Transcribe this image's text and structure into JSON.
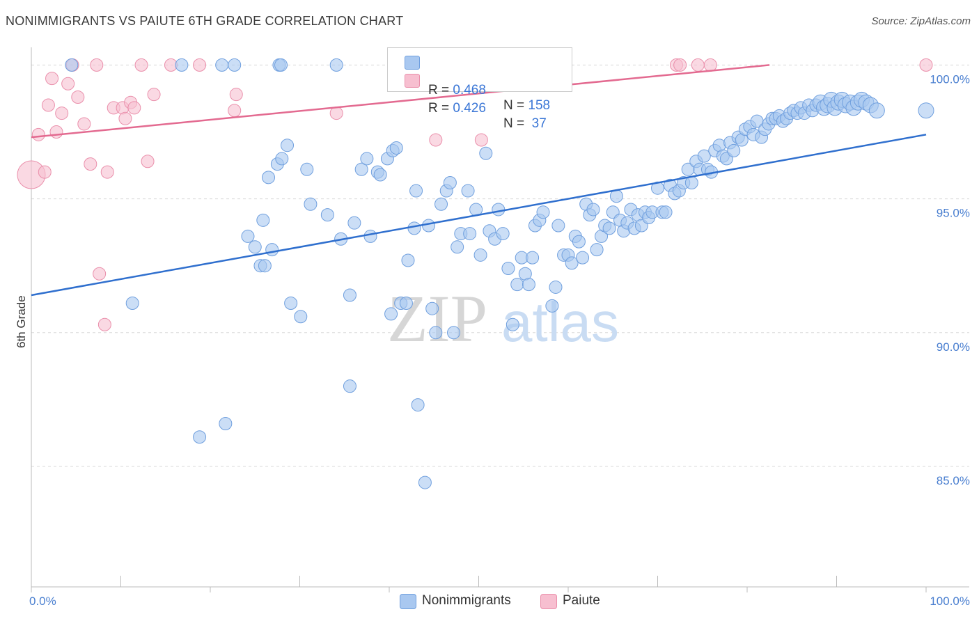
{
  "title": "NONIMMIGRANTS VS PAIUTE 6TH GRADE CORRELATION CHART",
  "source": "Source: ZipAtlas.com",
  "watermark": {
    "zip": "ZIP",
    "atlas": "atlas"
  },
  "legend": {
    "rows": [
      {
        "r_label": "R = ",
        "r_value": "0.468",
        "n_label": "N = ",
        "n_value": "158"
      },
      {
        "r_label": "R = ",
        "r_value": "0.426",
        "n_label": "N = ",
        "n_value": " 37"
      }
    ]
  },
  "bottom_legend": {
    "series_a": "Nonimmigrants",
    "series_b": "Paiute"
  },
  "colors": {
    "blue_fill": "#a9c8f0",
    "blue_stroke": "#6f9fde",
    "blue_line": "#2f6fce",
    "pink_fill": "#f7bfd0",
    "pink_stroke": "#ea8fab",
    "pink_line": "#e36a90",
    "tick_text": "#4a7fd0",
    "grid": "#d8d8d8"
  },
  "chart_data": {
    "type": "scatter",
    "title": "NONIMMIGRANTS VS PAIUTE 6TH GRADE CORRELATION CHART",
    "xlabel": "",
    "ylabel": "6th Grade",
    "xlim": [
      0,
      100
    ],
    "ylim": [
      80.5,
      100.4
    ],
    "x_tick_labels": [
      "0.0%",
      "100.0%"
    ],
    "y_ticks": [
      85,
      90,
      95,
      100
    ],
    "y_tick_labels": [
      "85.0%",
      "90.0%",
      "95.0%",
      "100.0%"
    ],
    "grid": "horizontal dashed",
    "series": [
      {
        "name": "Nonimmigrants",
        "R": 0.468,
        "N": 158,
        "trend": {
          "x": [
            0,
            100
          ],
          "y": [
            91.4,
            97.4
          ]
        },
        "points": [
          [
            4.5,
            100
          ],
          [
            16.8,
            100
          ],
          [
            21.3,
            100
          ],
          [
            22.7,
            100
          ],
          [
            27.7,
            100
          ],
          [
            27.9,
            100
          ],
          [
            34.1,
            100
          ],
          [
            11.3,
            91.1
          ],
          [
            18.8,
            86.1
          ],
          [
            21.7,
            86.6
          ],
          [
            24.2,
            93.6
          ],
          [
            25.0,
            93.2
          ],
          [
            25.6,
            92.5
          ],
          [
            25.9,
            94.2
          ],
          [
            26.1,
            92.5
          ],
          [
            26.5,
            95.8
          ],
          [
            26.9,
            93.1
          ],
          [
            27.5,
            96.3
          ],
          [
            28.6,
            97.0
          ],
          [
            28.0,
            96.5
          ],
          [
            29.0,
            91.1
          ],
          [
            30.1,
            90.6
          ],
          [
            30.8,
            96.1
          ],
          [
            31.2,
            94.8
          ],
          [
            33.1,
            94.4
          ],
          [
            34.6,
            93.5
          ],
          [
            35.6,
            91.4
          ],
          [
            35.6,
            88.0
          ],
          [
            36.1,
            94.1
          ],
          [
            36.9,
            96.1
          ],
          [
            37.5,
            96.5
          ],
          [
            37.9,
            93.6
          ],
          [
            38.7,
            96.0
          ],
          [
            39.0,
            95.9
          ],
          [
            39.8,
            96.5
          ],
          [
            40.2,
            90.7
          ],
          [
            40.4,
            96.8
          ],
          [
            40.8,
            96.9
          ],
          [
            41.3,
            91.1
          ],
          [
            41.9,
            91.1
          ],
          [
            42.1,
            92.7
          ],
          [
            42.8,
            93.9
          ],
          [
            43.0,
            95.3
          ],
          [
            43.2,
            87.3
          ],
          [
            44.0,
            84.4
          ],
          [
            44.4,
            94.0
          ],
          [
            44.8,
            90.9
          ],
          [
            45.2,
            90.0
          ],
          [
            45.8,
            94.8
          ],
          [
            46.4,
            95.3
          ],
          [
            46.8,
            95.6
          ],
          [
            47.2,
            90.0
          ],
          [
            47.6,
            93.2
          ],
          [
            48.0,
            93.7
          ],
          [
            48.8,
            95.3
          ],
          [
            49.0,
            93.7
          ],
          [
            49.7,
            94.6
          ],
          [
            50.2,
            92.9
          ],
          [
            50.8,
            96.7
          ],
          [
            51.2,
            93.8
          ],
          [
            51.8,
            93.5
          ],
          [
            52.2,
            94.6
          ],
          [
            52.7,
            93.7
          ],
          [
            53.3,
            92.4
          ],
          [
            53.8,
            90.3
          ],
          [
            54.3,
            91.8
          ],
          [
            54.8,
            92.8
          ],
          [
            55.2,
            92.2
          ],
          [
            55.6,
            91.8
          ],
          [
            56.0,
            92.8
          ],
          [
            56.3,
            94.0
          ],
          [
            56.8,
            94.2
          ],
          [
            57.2,
            94.5
          ],
          [
            58.2,
            91.0
          ],
          [
            58.6,
            91.7
          ],
          [
            58.9,
            94.0
          ],
          [
            59.5,
            92.9
          ],
          [
            60.0,
            92.9
          ],
          [
            60.4,
            92.6
          ],
          [
            60.8,
            93.6
          ],
          [
            61.2,
            93.4
          ],
          [
            61.6,
            92.8
          ],
          [
            62.0,
            94.8
          ],
          [
            62.4,
            94.4
          ],
          [
            62.8,
            94.6
          ],
          [
            63.2,
            93.1
          ],
          [
            63.7,
            93.6
          ],
          [
            64.1,
            94.0
          ],
          [
            64.6,
            93.9
          ],
          [
            65.0,
            94.5
          ],
          [
            65.4,
            95.1
          ],
          [
            65.8,
            94.2
          ],
          [
            66.2,
            93.8
          ],
          [
            66.6,
            94.1
          ],
          [
            67.0,
            94.6
          ],
          [
            67.4,
            93.9
          ],
          [
            67.8,
            94.4
          ],
          [
            68.2,
            94.0
          ],
          [
            68.6,
            94.5
          ],
          [
            69.0,
            94.3
          ],
          [
            69.4,
            94.5
          ],
          [
            70.0,
            95.4
          ],
          [
            70.5,
            94.5
          ],
          [
            70.9,
            94.5
          ],
          [
            71.4,
            95.5
          ],
          [
            71.9,
            95.2
          ],
          [
            72.4,
            95.3
          ],
          [
            72.9,
            95.6
          ],
          [
            73.4,
            96.1
          ],
          [
            73.8,
            95.6
          ],
          [
            74.3,
            96.4
          ],
          [
            74.7,
            96.1
          ],
          [
            75.2,
            96.6
          ],
          [
            75.6,
            96.1
          ],
          [
            76.0,
            96.0
          ],
          [
            76.4,
            96.8
          ],
          [
            76.9,
            97.0
          ],
          [
            77.3,
            96.6
          ],
          [
            77.7,
            96.5
          ],
          [
            78.1,
            97.1
          ],
          [
            78.5,
            96.8
          ],
          [
            79.0,
            97.3
          ],
          [
            79.4,
            97.2
          ],
          [
            79.8,
            97.6
          ],
          [
            80.3,
            97.7
          ],
          [
            80.7,
            97.4
          ],
          [
            81.1,
            97.9
          ],
          [
            81.6,
            97.3
          ],
          [
            82.0,
            97.6
          ],
          [
            82.4,
            97.8
          ],
          [
            82.8,
            98.0
          ],
          [
            83.2,
            98.0
          ],
          [
            83.6,
            98.1
          ],
          [
            84.0,
            97.9
          ],
          [
            84.4,
            98.0
          ],
          [
            84.8,
            98.2
          ],
          [
            85.2,
            98.3
          ],
          [
            85.6,
            98.2
          ],
          [
            86.0,
            98.4
          ],
          [
            86.4,
            98.2
          ],
          [
            86.9,
            98.5
          ],
          [
            87.3,
            98.3
          ],
          [
            87.7,
            98.5
          ],
          [
            88.2,
            98.6
          ],
          [
            88.6,
            98.4
          ],
          [
            89.0,
            98.5
          ],
          [
            89.4,
            98.7
          ],
          [
            89.8,
            98.4
          ],
          [
            90.2,
            98.6
          ],
          [
            90.6,
            98.7
          ],
          [
            91.0,
            98.5
          ],
          [
            91.5,
            98.6
          ],
          [
            91.9,
            98.4
          ],
          [
            92.4,
            98.6
          ],
          [
            92.8,
            98.7
          ],
          [
            93.3,
            98.6
          ],
          [
            93.8,
            98.5
          ],
          [
            94.5,
            98.3
          ],
          [
            100,
            98.3
          ]
        ]
      },
      {
        "name": "Paiute",
        "R": 0.426,
        "N": 37,
        "trend": {
          "x": [
            0,
            82.5
          ],
          "y": [
            97.3,
            100
          ]
        },
        "points": [
          [
            0,
            95.9
          ],
          [
            0.8,
            97.4
          ],
          [
            1.5,
            96.0
          ],
          [
            1.9,
            98.5
          ],
          [
            2.3,
            99.5
          ],
          [
            2.8,
            97.5
          ],
          [
            3.4,
            98.2
          ],
          [
            4.1,
            99.3
          ],
          [
            4.6,
            100
          ],
          [
            5.2,
            98.8
          ],
          [
            5.9,
            97.8
          ],
          [
            6.6,
            96.3
          ],
          [
            7.3,
            100
          ],
          [
            7.6,
            92.2
          ],
          [
            8.2,
            90.3
          ],
          [
            8.5,
            96.0
          ],
          [
            9.2,
            98.4
          ],
          [
            10.2,
            98.4
          ],
          [
            10.5,
            98.0
          ],
          [
            11.1,
            98.6
          ],
          [
            11.5,
            98.4
          ],
          [
            12.3,
            100
          ],
          [
            13.0,
            96.4
          ],
          [
            13.7,
            98.9
          ],
          [
            15.6,
            100
          ],
          [
            18.8,
            100
          ],
          [
            22.7,
            98.3
          ],
          [
            22.9,
            98.9
          ],
          [
            34.1,
            98.2
          ],
          [
            45.2,
            97.2
          ],
          [
            47.6,
            100
          ],
          [
            50.3,
            97.2
          ],
          [
            72.1,
            100
          ],
          [
            72.5,
            100
          ],
          [
            74.5,
            100
          ],
          [
            75.9,
            100
          ],
          [
            100,
            100
          ]
        ]
      }
    ]
  }
}
